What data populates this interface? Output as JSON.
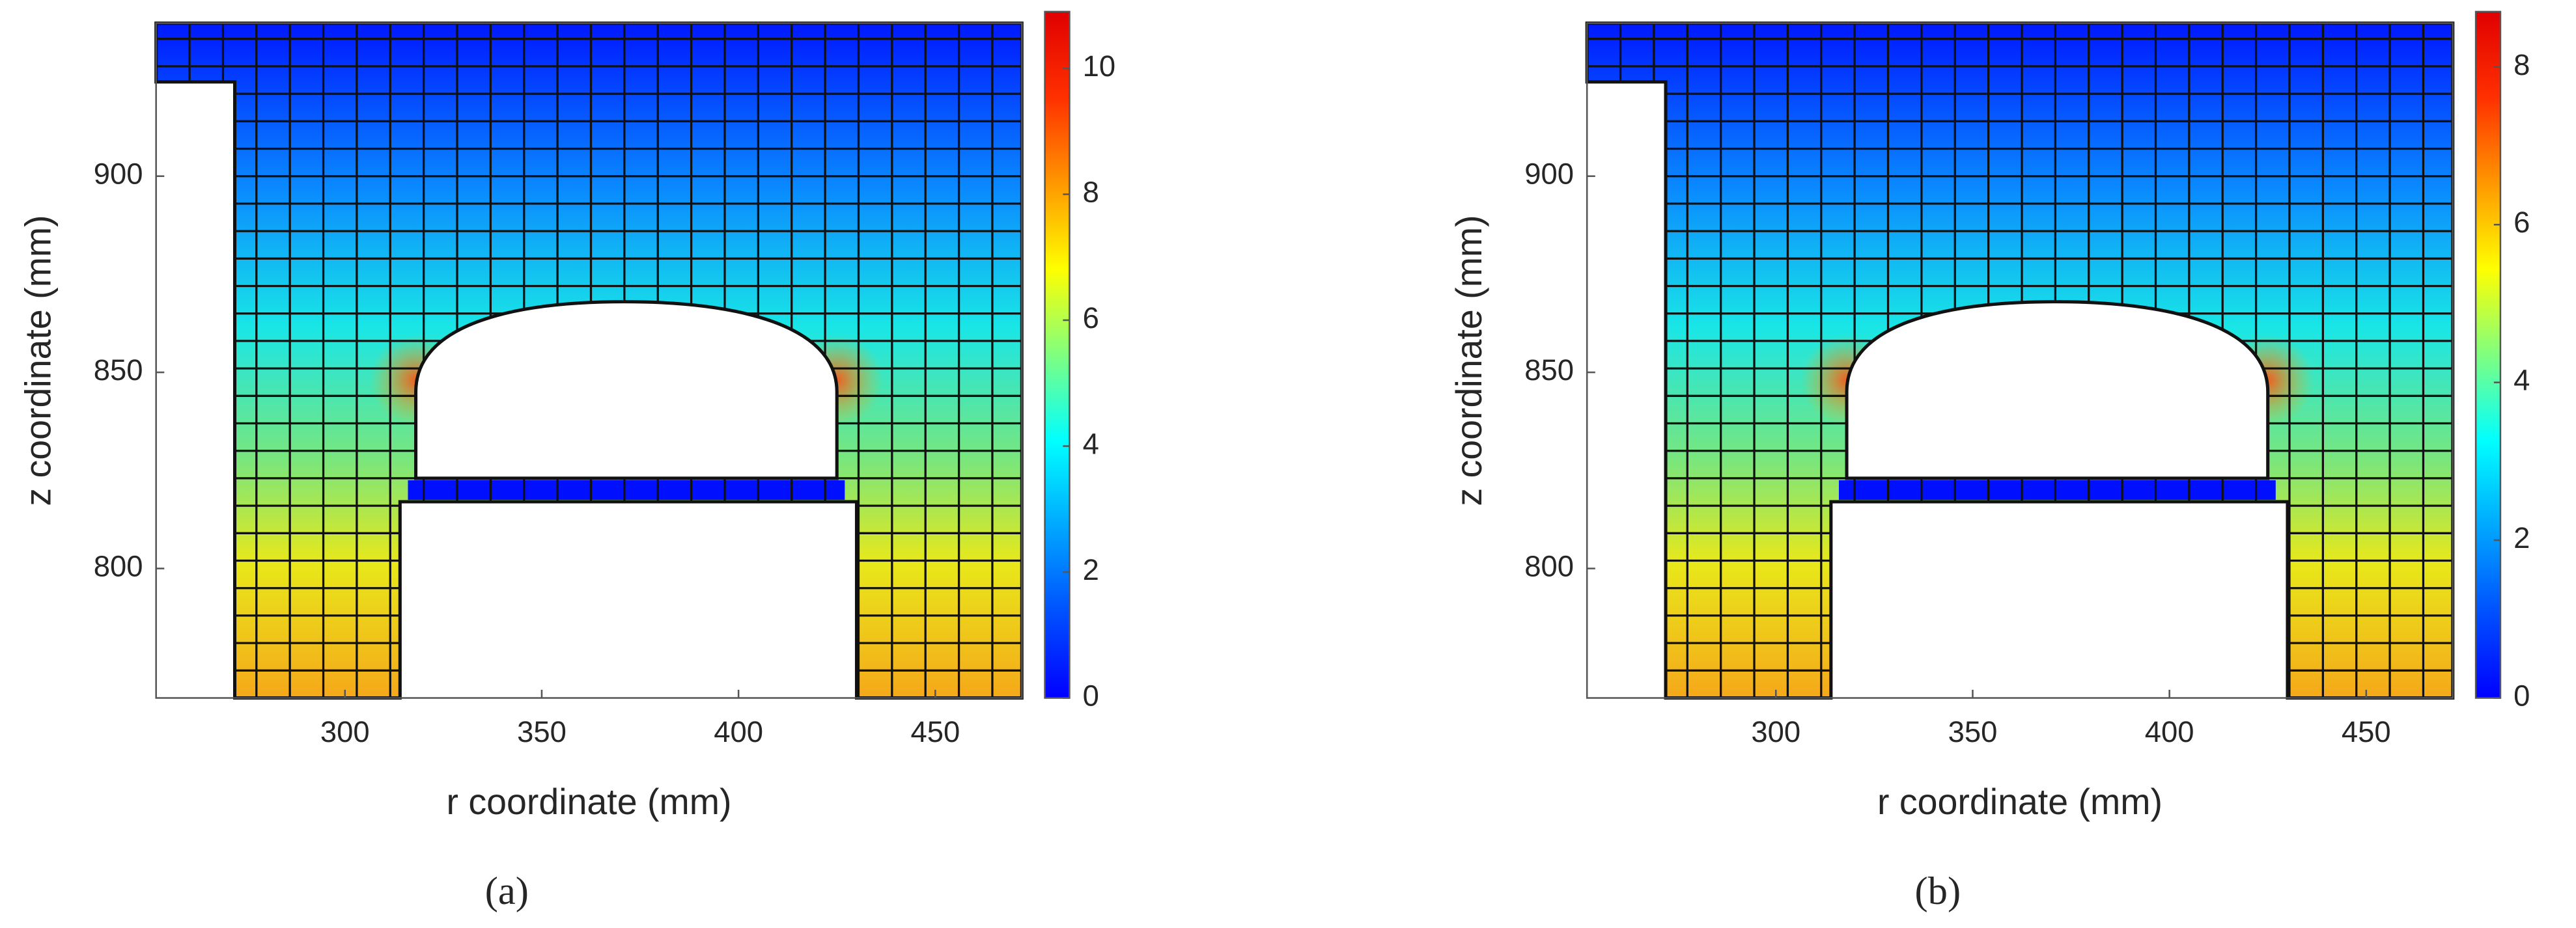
{
  "chart_data": [
    {
      "type": "field",
      "panel_label": "(a)",
      "xlabel": "r coordinate (mm)",
      "ylabel": "z coordinate (mm)",
      "xlim": [
        252,
        472
      ],
      "ylim": [
        767,
        939
      ],
      "xticks": [
        300,
        350,
        400,
        450
      ],
      "yticks": [
        800,
        850,
        900
      ],
      "colorbar": {
        "lim": [
          0,
          10.9
        ],
        "ticks": [
          0,
          2,
          4,
          6,
          8,
          10
        ]
      }
    },
    {
      "type": "field",
      "panel_label": "(b)",
      "xlabel": "r coordinate (mm)",
      "ylabel": "z coordinate (mm)",
      "xlim": [
        252,
        472
      ],
      "ylim": [
        767,
        939
      ],
      "xticks": [
        300,
        350,
        400,
        450
      ],
      "yticks": [
        800,
        850,
        900
      ],
      "colorbar": {
        "lim": [
          0,
          8.7
        ],
        "ticks": [
          0,
          2,
          4,
          6,
          8
        ]
      }
    }
  ]
}
